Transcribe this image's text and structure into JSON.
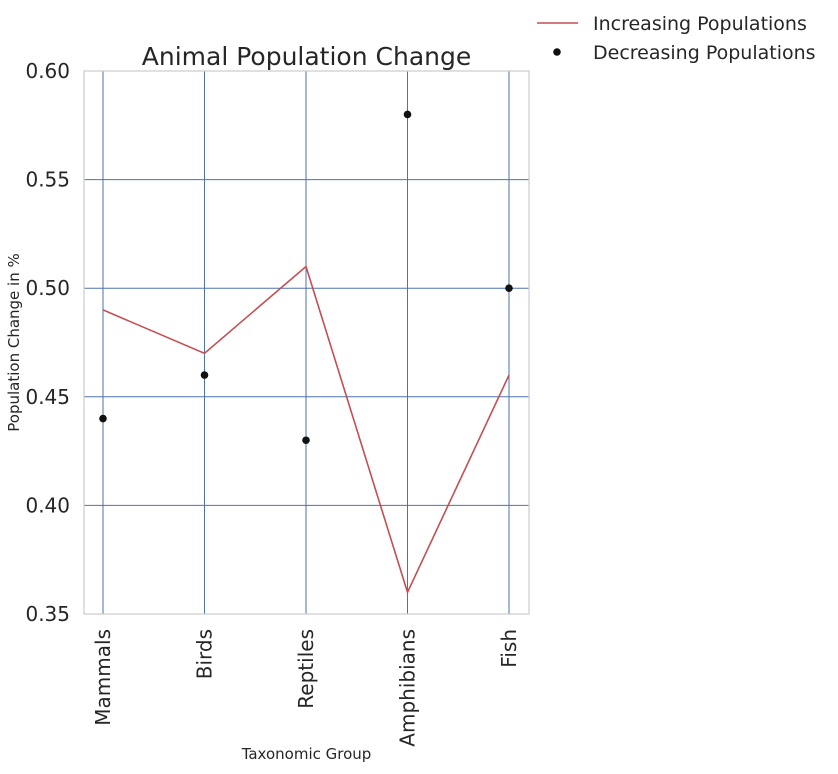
{
  "chart_data": {
    "type": "line",
    "title": "Animal Population Change",
    "xlabel": "Taxonomic Group",
    "ylabel": "Population Change in %",
    "categories": [
      "Mammals",
      "Birds",
      "Reptiles",
      "Amphibians",
      "Fish"
    ],
    "ylim": [
      0.35,
      0.6
    ],
    "yticks": [
      "0.35",
      "0.40",
      "0.45",
      "0.50",
      "0.55",
      "0.60"
    ],
    "grid": true,
    "legend_position": "top-right (outside plot)",
    "series": [
      {
        "name": "Increasing Populations",
        "style": "line",
        "color": "#c44e52",
        "values": [
          0.49,
          0.47,
          0.51,
          0.36,
          0.46
        ]
      },
      {
        "name": "Decreasing Populations",
        "style": "markers",
        "color": "#111111",
        "values": [
          0.44,
          0.46,
          0.43,
          0.58,
          0.5
        ]
      }
    ],
    "colors": {
      "grid": "#4c72b0",
      "frame": "#cccccc"
    }
  }
}
